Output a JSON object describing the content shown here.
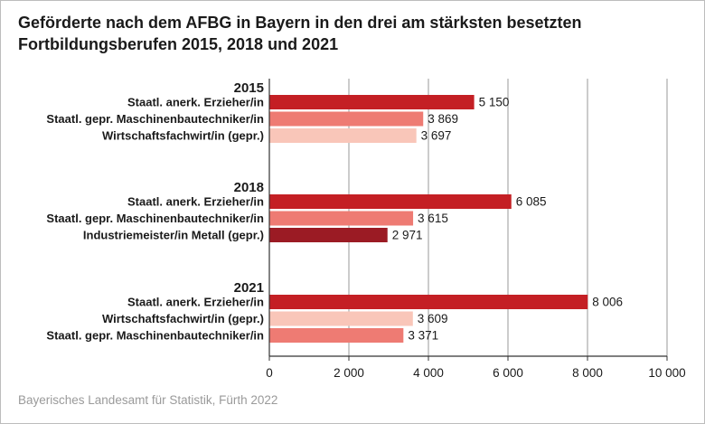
{
  "title": {
    "line1": "Geförderte nach dem AFBG in Bayern in den drei am stärksten besetzten",
    "line2": "Fortbildungsberufen 2015, 2018 und 2021"
  },
  "source": "Bayerisches Landesamt für Statistik, Fürth 2022",
  "colors": {
    "staatl_erzieher": "#c41f24",
    "maschinenbautechniker": "#ee7b73",
    "wirtschaftsfachwirt": "#f9c6b9",
    "industriemeister": "#9b1b24",
    "gridline": "#9a9a9a"
  },
  "chart_data": {
    "type": "bar",
    "orientation": "horizontal",
    "title": "Geförderte nach dem AFBG in Bayern in den drei am stärksten besetzten Fortbildungsberufen 2015, 2018 und 2021",
    "xlim": [
      0,
      10000
    ],
    "xticks": [
      0,
      2000,
      4000,
      6000,
      8000,
      10000
    ],
    "xtick_labels": [
      "0",
      "2 000",
      "4 000",
      "6 000",
      "8 000",
      "10 000"
    ],
    "grid": "vertical",
    "groups": [
      {
        "label": "2015",
        "bars": [
          {
            "label": "Staatl. anerk. Erzieher/in",
            "value": 5150,
            "value_label": "5 150",
            "color": "#c41f24"
          },
          {
            "label": "Staatl. gepr. Maschinenbautechniker/in",
            "value": 3869,
            "value_label": "3 869",
            "color": "#ee7b73"
          },
          {
            "label": "Wirtschaftsfachwirt/in (gepr.)",
            "value": 3697,
            "value_label": "3 697",
            "color": "#f9c6b9"
          }
        ]
      },
      {
        "label": "2018",
        "bars": [
          {
            "label": "Staatl. anerk. Erzieher/in",
            "value": 6085,
            "value_label": "6 085",
            "color": "#c41f24"
          },
          {
            "label": "Staatl. gepr. Maschinenbautechniker/in",
            "value": 3615,
            "value_label": "3 615",
            "color": "#ee7b73"
          },
          {
            "label": "Industriemeister/in Metall (gepr.)",
            "value": 2971,
            "value_label": "2 971",
            "color": "#9b1b24"
          }
        ]
      },
      {
        "label": "2021",
        "bars": [
          {
            "label": "Staatl. anerk. Erzieher/in",
            "value": 8006,
            "value_label": "8 006",
            "color": "#c41f24"
          },
          {
            "label": "Wirtschaftsfachwirt/in (gepr.)",
            "value": 3609,
            "value_label": "3 609",
            "color": "#f9c6b9"
          },
          {
            "label": "Staatl. gepr. Maschinenbautechniker/in",
            "value": 3371,
            "value_label": "3 371",
            "color": "#ee7b73"
          }
        ]
      }
    ]
  }
}
